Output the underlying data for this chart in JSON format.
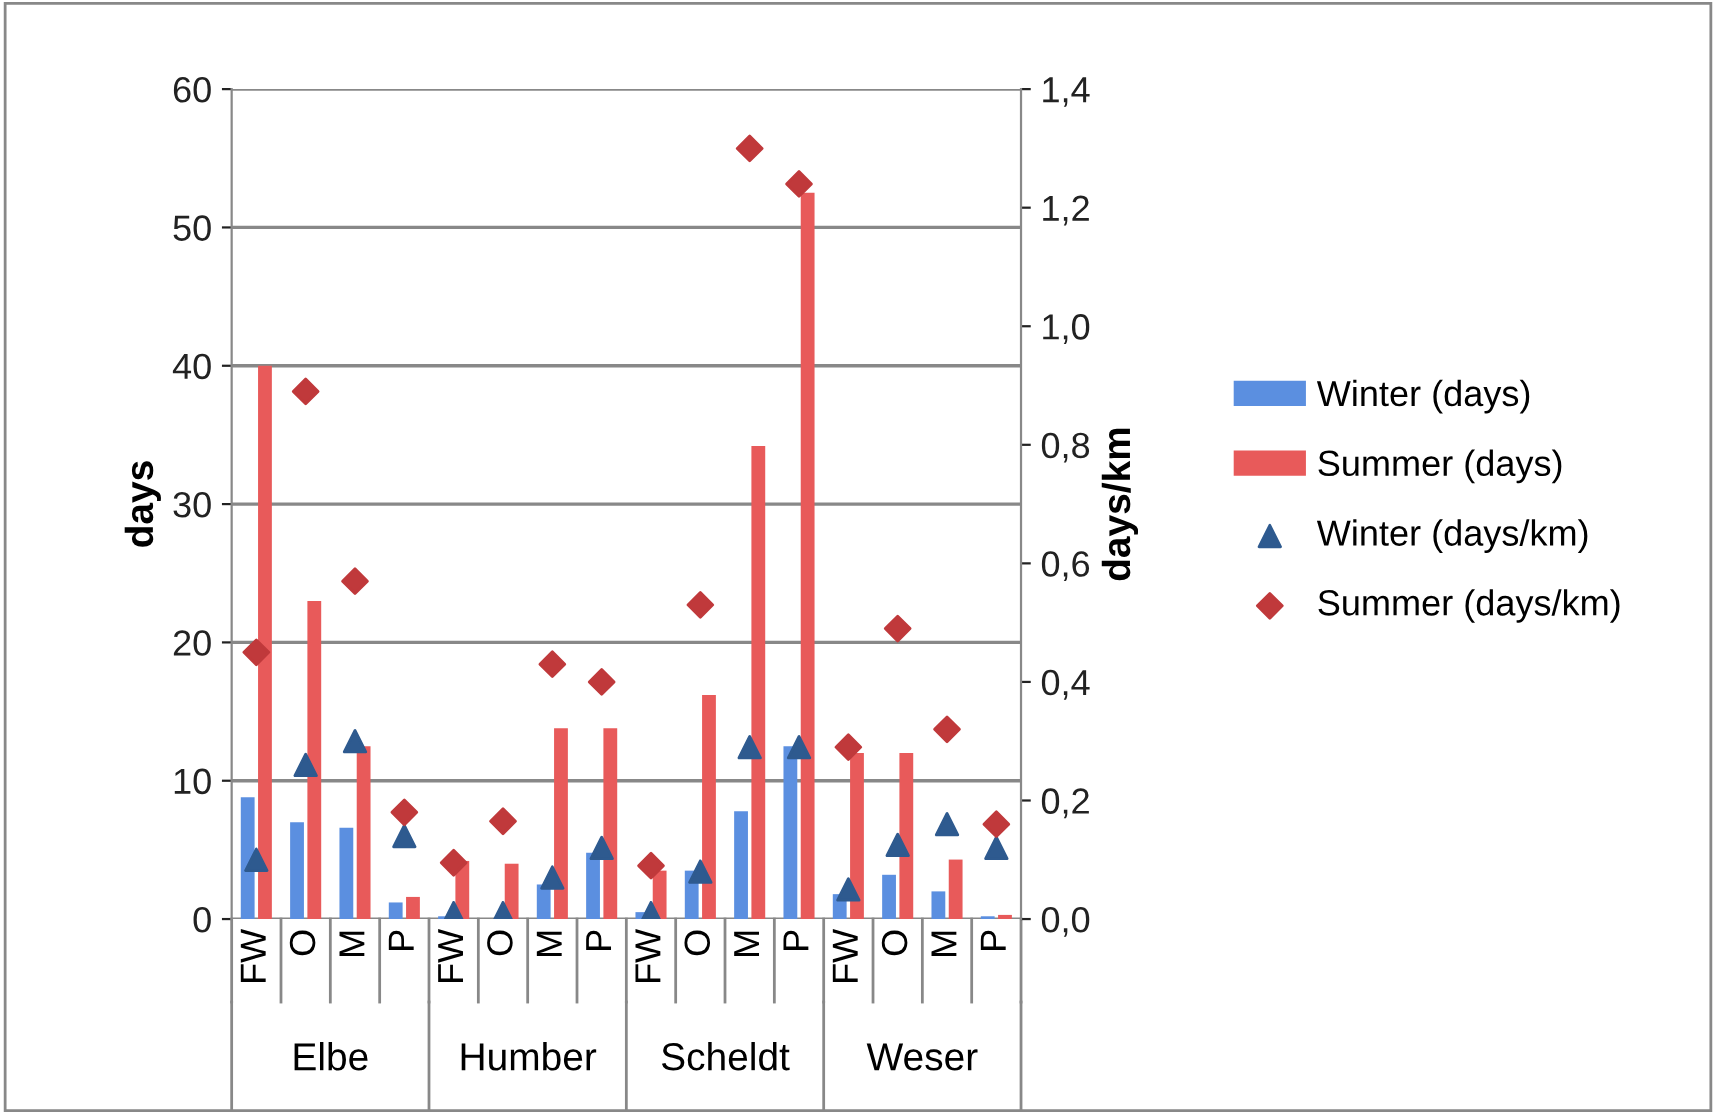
{
  "chart_data": {
    "type": "bar",
    "ylabel": "days",
    "y2label": "days/km",
    "categories": [
      "FW",
      "O",
      "M",
      "P",
      "FW",
      "O",
      "M",
      "P",
      "FW",
      "O",
      "M",
      "P",
      "FW",
      "O",
      "M",
      "P"
    ],
    "annotations": [
      "Elbe",
      "Humber",
      "Scheldt",
      "Weser"
    ],
    "series": [
      {
        "name": "Winter (days)",
        "color": "#5b8fe0",
        "values": [
          8.8,
          7,
          6.6,
          1.2,
          0.2,
          null,
          2.5,
          4.8,
          0.5,
          3.5,
          7.8,
          12.5,
          1.8,
          3.2,
          2,
          0.2
        ]
      },
      {
        "name": "Summer (days)",
        "color": "#e85a5a",
        "values": [
          40,
          23,
          12.5,
          1.6,
          4.2,
          4,
          13.8,
          13.8,
          3.5,
          16.2,
          34.2,
          52.5,
          12,
          12,
          4.3,
          0.3
        ]
      },
      {
        "name": "Winter (days/km)",
        "type": "scatter",
        "axis": "y2",
        "marker": "triangle",
        "color": "#2e5a8f",
        "values": [
          0.1,
          0.26,
          0.3,
          0.14,
          0.01,
          0.01,
          0.07,
          0.12,
          0.01,
          0.08,
          0.29,
          0.29,
          0.05,
          0.125,
          0.16,
          0.12
        ]
      },
      {
        "name": "Summer (days/km)",
        "type": "scatter",
        "axis": "y2",
        "marker": "diamond",
        "color": "#c0393b",
        "values": [
          0.45,
          0.89,
          0.57,
          0.18,
          0.095,
          0.165,
          0.43,
          0.4,
          0.09,
          0.53,
          1.3,
          1.24,
          0.29,
          0.49,
          0.32,
          0.16
        ]
      }
    ],
    "ylim": [
      0,
      60
    ],
    "yticks": [
      0,
      10,
      20,
      30,
      40,
      50,
      60
    ],
    "y2lim": [
      0,
      1.4
    ],
    "y2ticks": [
      {
        "value": 0,
        "label": "0,0"
      },
      {
        "value": 0.2,
        "label": "0,2"
      },
      {
        "value": 0.4,
        "label": "0,4"
      },
      {
        "value": 0.6,
        "label": "0,6"
      },
      {
        "value": 0.8,
        "label": "0,8"
      },
      {
        "value": 1.0,
        "label": "1,0"
      },
      {
        "value": 1.2,
        "label": "1,2"
      },
      {
        "value": 1.4,
        "label": "1,4"
      }
    ],
    "grid": "y",
    "legend": "right"
  }
}
